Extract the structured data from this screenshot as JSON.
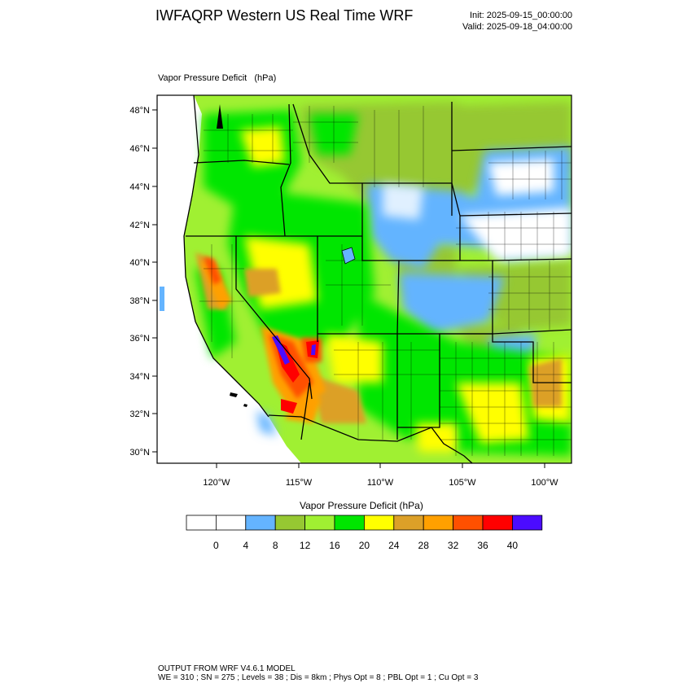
{
  "header": {
    "title": "IWFAQRP Western US Real Time WRF",
    "init": "Init: 2025-09-15_00:00:00",
    "valid": "Valid: 2025-09-18_04:00:00"
  },
  "map": {
    "title": "Vapor Pressure Deficit   (hPa)",
    "lat_labels": [
      "48°N",
      "46°N",
      "44°N",
      "42°N",
      "40°N",
      "38°N",
      "36°N",
      "34°N",
      "32°N",
      "30°N"
    ],
    "lon_labels": [
      "120°W",
      "115°W",
      "110°W",
      "105°W",
      "100°W"
    ]
  },
  "colorbar": {
    "title": "Vapor Pressure Deficit  (hPa)",
    "colors": [
      "#ffffff",
      "#ffffff",
      "#64b4ff",
      "#96c832",
      "#a0f032",
      "#00e600",
      "#ffff00",
      "#dca028",
      "#ffa000",
      "#ff5000",
      "#ff0000",
      "#4b0cff"
    ],
    "labels": [
      "0",
      "4",
      "8",
      "12",
      "16",
      "20",
      "24",
      "28",
      "32",
      "36",
      "40"
    ]
  },
  "footer": {
    "line1": "OUTPUT FROM WRF V4.6.1 MODEL",
    "line2": "WE = 310 ; SN = 275 ; Levels = 38 ; Dis = 8km ; Phys Opt = 8 ; PBL Opt = 1 ; Cu Opt = 3"
  }
}
